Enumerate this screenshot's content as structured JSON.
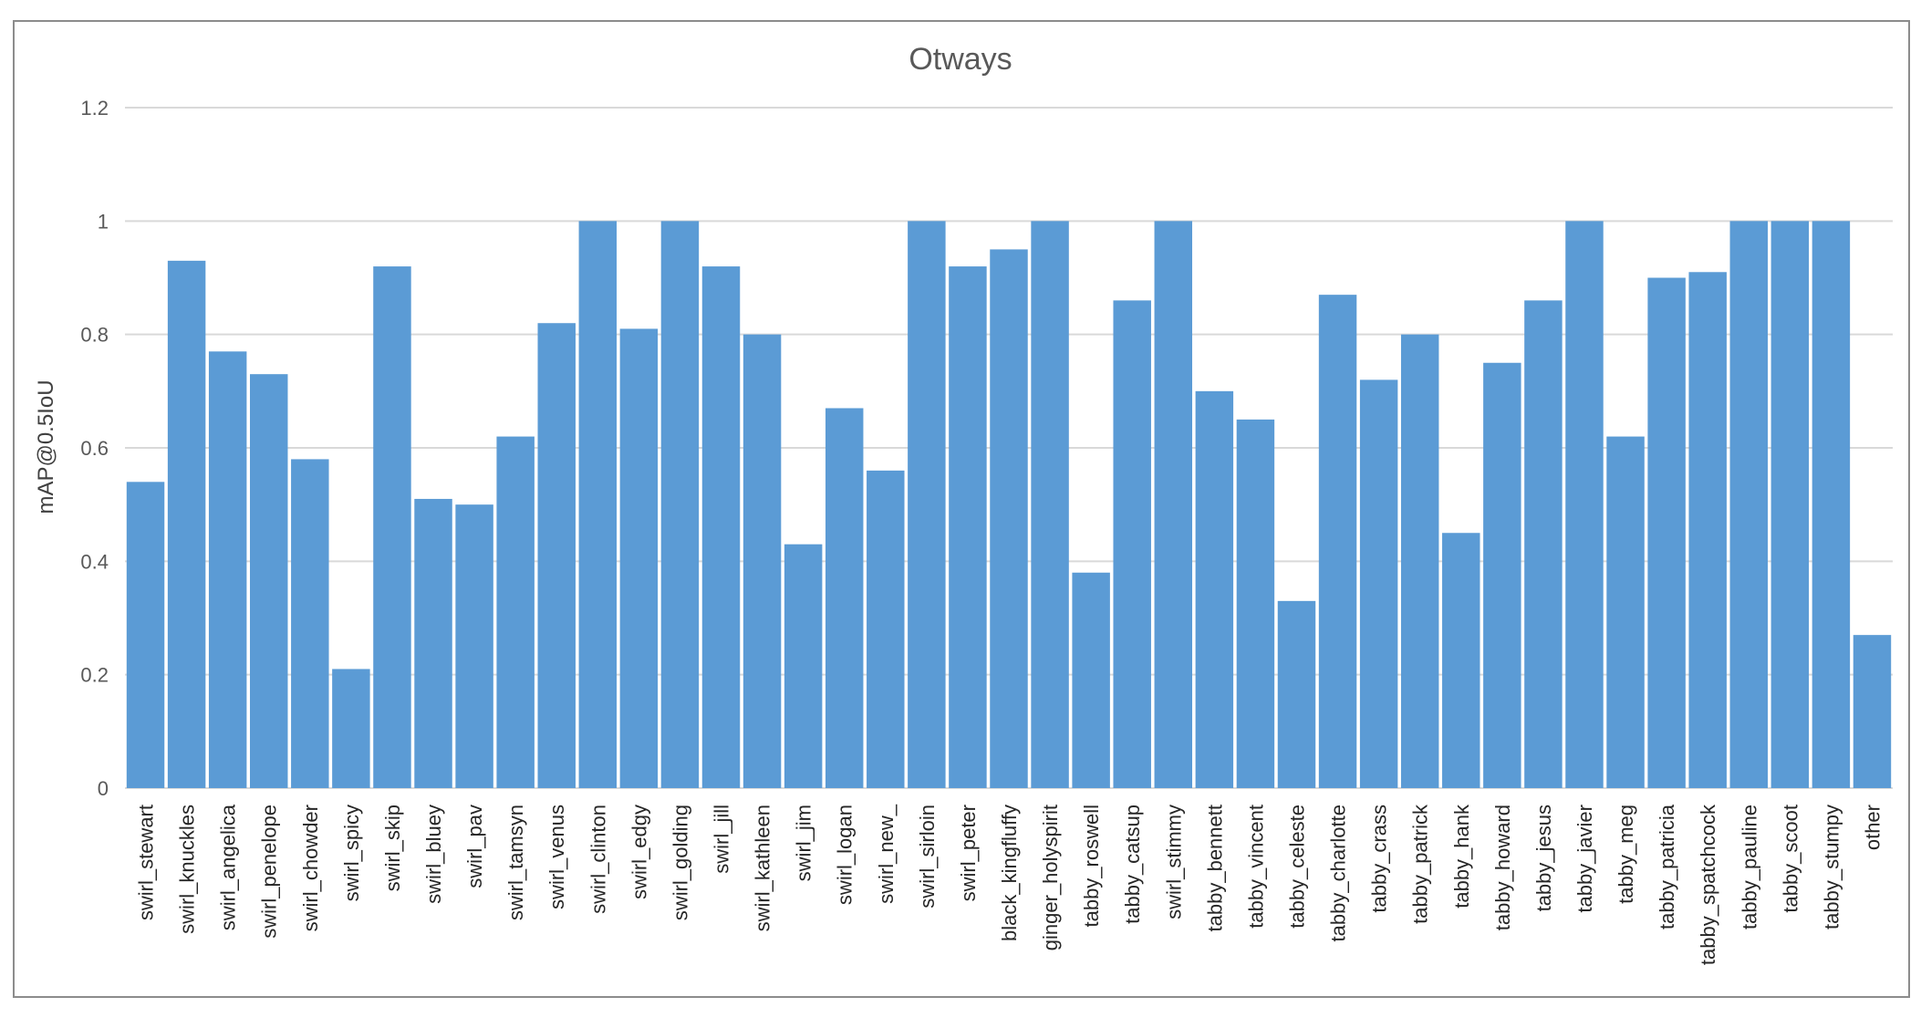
{
  "chart_data": {
    "type": "bar",
    "title": "Otways",
    "ylabel": "mAP@0.5IoU",
    "xlabel": "",
    "ylim": [
      0,
      1.2
    ],
    "yticks": [
      "0",
      "0.2",
      "0.4",
      "0.6",
      "0.8",
      "1",
      "1.2"
    ],
    "grid": true,
    "legend": "none",
    "bar_color": "#5b9bd5",
    "categories": [
      "swirl_stewart",
      "swirl_knuckles",
      "swirl_angelica",
      "swirl_penelope",
      "swirl_chowder",
      "swirl_spicy",
      "swirl_skip",
      "swirl_bluey",
      "swirl_pav",
      "swirl_tamsyn",
      "swirl_venus",
      "swirl_clinton",
      "swirl_edgy",
      "swirl_golding",
      "swirl_jill",
      "swirl_kathleen",
      "swirl_jim",
      "swirl_logan",
      "swirl_new_",
      "swirl_sirloin",
      "swirl_peter",
      "black_kingfluffy",
      "ginger_holyspirit",
      "tabby_roswell",
      "tabby_catsup",
      "swirl_stimmy",
      "tabby_bennett",
      "tabby_vincent",
      "tabby_celeste",
      "tabby_charlotte",
      "tabby_crass",
      "tabby_patrick",
      "tabby_hank",
      "tabby_howard",
      "tabby_jesus",
      "tabby_javier",
      "tabby_meg",
      "tabby_patricia",
      "tabby_spatchcock",
      "tabby_pauline",
      "tabby_scoot",
      "tabby_stumpy",
      "other"
    ],
    "values": [
      0.54,
      0.93,
      0.77,
      0.73,
      0.58,
      0.21,
      0.92,
      0.51,
      0.5,
      0.62,
      0.82,
      1.0,
      0.81,
      1.0,
      0.92,
      0.8,
      0.43,
      0.67,
      0.56,
      1.0,
      0.92,
      0.95,
      1.0,
      0.38,
      0.86,
      1.0,
      0.7,
      0.65,
      0.33,
      0.87,
      0.72,
      0.8,
      0.45,
      0.75,
      0.86,
      1.0,
      0.62,
      0.9,
      0.91,
      1.0,
      1.0,
      1.0,
      0.27
    ]
  }
}
